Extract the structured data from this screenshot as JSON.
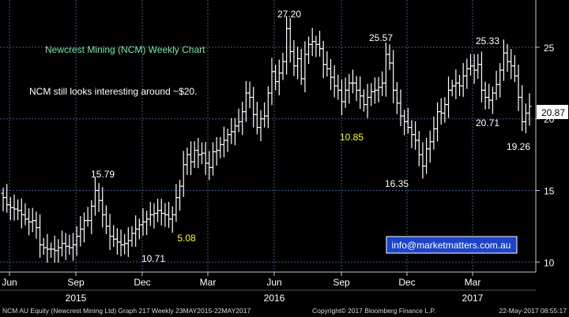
{
  "chart_data": {
    "type": "bar",
    "subtype": "ohlc",
    "title": "Newcrest Mining (NCM) Weekly Chart",
    "subtitle": "NCM still looks interesting around ~$20.",
    "y_ticks": [
      10,
      15,
      20,
      25
    ],
    "ylim": [
      9.3,
      28.3
    ],
    "grid": true,
    "x_month_labels": [
      "Jun",
      "Sep",
      "Dec",
      "Mar",
      "Jun",
      "Sep",
      "Dec",
      "Mar"
    ],
    "x_year_labels": [
      "2015",
      "2016",
      "2017"
    ],
    "last_value": "20.87",
    "annotations": [
      {
        "text": "15.79",
        "color": "#ffffff"
      },
      {
        "text": "10.71",
        "color": "#ffffff"
      },
      {
        "text": "5.08",
        "color": "#ffff00"
      },
      {
        "text": "27.20",
        "color": "#ffffff"
      },
      {
        "text": "10.85",
        "color": "#ffff00"
      },
      {
        "text": "25.57",
        "color": "#ffffff"
      },
      {
        "text": "16.35",
        "color": "#ffffff"
      },
      {
        "text": "25.33",
        "color": "#ffffff"
      },
      {
        "text": "20.71",
        "color": "#ffffff"
      },
      {
        "text": "19.26",
        "color": "#ffffff"
      }
    ],
    "website_label": "info@marketmatters.com.au",
    "series": [
      {
        "weekly_close": [
          14.5,
          14.0,
          13.8,
          13.7,
          13.6,
          13.3,
          13.0,
          12.8,
          12.9,
          12.4,
          11.2,
          11.0,
          10.9,
          10.9,
          10.8,
          11.0,
          11.3,
          11.1,
          11.0,
          11.2,
          11.8,
          12.3,
          12.9,
          12.9,
          13.9,
          15.0,
          14.3,
          13.3,
          12.5,
          11.8,
          11.6,
          11.4,
          11.2,
          11.3,
          11.5,
          12.0,
          12.3,
          12.6,
          12.8,
          13.0,
          13.3,
          13.4,
          13.6,
          13.4,
          13.3,
          13.0,
          13.3,
          14.5,
          15.3,
          16.8,
          17.5,
          17.0,
          17.8,
          17.5,
          17.6,
          16.9,
          16.6,
          17.7,
          17.8,
          18.2,
          18.5,
          18.9,
          19.1,
          19.5,
          19.8,
          20.5,
          21.8,
          21.5,
          20.3,
          19.4,
          20.0,
          20.2,
          21.8,
          23.3,
          22.6,
          23.2,
          24.0,
          26.3,
          24.7,
          23.7,
          24.2,
          22.8,
          24.5,
          25.2,
          25.4,
          25.2,
          24.9,
          23.8,
          23.5,
          22.9,
          22.3,
          22.0,
          21.2,
          22.0,
          22.5,
          22.5,
          22.0,
          21.6,
          21.0,
          21.5,
          21.9,
          22.0,
          22.2,
          22.5,
          24.5,
          23.9,
          22.0,
          21.1,
          20.2,
          19.8,
          19.4,
          18.9,
          18.5,
          17.5,
          16.7,
          17.9,
          18.4,
          19.3,
          20.5,
          20.4,
          21.0,
          22.0,
          22.3,
          22.5,
          22.3,
          23.0,
          23.5,
          23.7,
          23.4,
          23.8,
          22.0,
          21.5,
          21.3,
          21.8,
          22.4,
          23.4,
          24.6,
          24.0,
          23.7,
          23.0,
          21.5,
          19.8,
          20.4,
          20.87
        ],
        "weekly_range": 1.6
      }
    ]
  },
  "footer": {
    "left": "NCM AU Equity (Newcrest Mining Ltd) Graph 217  Weekly 23MAY2015-22MAY2017",
    "center": "Copyright© 2017 Bloomberg Finance L.P.",
    "right": "22-May-2017 08:55:17"
  },
  "colors": {
    "background": "#000000",
    "bars": "#ffffff",
    "grid": "#3a5b8c",
    "title": "#79e8a6",
    "highlight": "#ffff00",
    "website_box": "#1c43c8",
    "last_badge_bg": "#ffffff",
    "last_badge_text": "#000000"
  }
}
